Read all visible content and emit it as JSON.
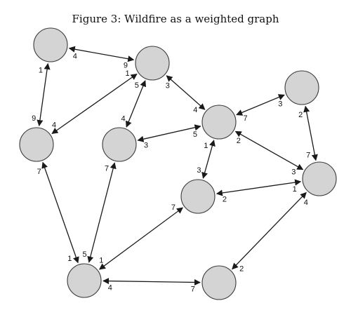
{
  "figure": {
    "caption": "Figure 3:  Wildfire as a weighted graph"
  },
  "graph": {
    "nodes": [
      "n1",
      "n2",
      "n3",
      "n4",
      "n5",
      "n6",
      "n7",
      "n8",
      "n9",
      "n10"
    ],
    "edges": [
      {
        "a": "n1",
        "b": "n2",
        "wa": "4",
        "wb": "9"
      },
      {
        "a": "n1",
        "b": "n3",
        "wa": "1",
        "wb": "9"
      },
      {
        "a": "n2",
        "b": "n3",
        "wa": "1",
        "wb": "4"
      },
      {
        "a": "n2",
        "b": "n4",
        "wa": "5",
        "wb": "4"
      },
      {
        "a": "n2",
        "b": "n5",
        "wa": "3",
        "wb": "4"
      },
      {
        "a": "n4",
        "b": "n5",
        "wa": "3",
        "wb": "5"
      },
      {
        "a": "n5",
        "b": "n6",
        "wa": "7",
        "wb": "3"
      },
      {
        "a": "n5",
        "b": "n7",
        "wa": "1",
        "wb": "3"
      },
      {
        "a": "n5",
        "b": "n8",
        "wa": "2",
        "wb": "3"
      },
      {
        "a": "n6",
        "b": "n8",
        "wa": "2",
        "wb": "7"
      },
      {
        "a": "n7",
        "b": "n8",
        "wa": "2",
        "wb": "1"
      },
      {
        "a": "n3",
        "b": "n9",
        "wa": "7",
        "wb": "1"
      },
      {
        "a": "n4",
        "b": "n9",
        "wa": "7",
        "wb": "5"
      },
      {
        "a": "n7",
        "b": "n9",
        "wa": "7",
        "wb": "1"
      },
      {
        "a": "n9",
        "b": "n10",
        "wa": "4",
        "wb": "7"
      },
      {
        "a": "n10",
        "b": "n8",
        "wa": "2",
        "wb": "4"
      }
    ]
  }
}
